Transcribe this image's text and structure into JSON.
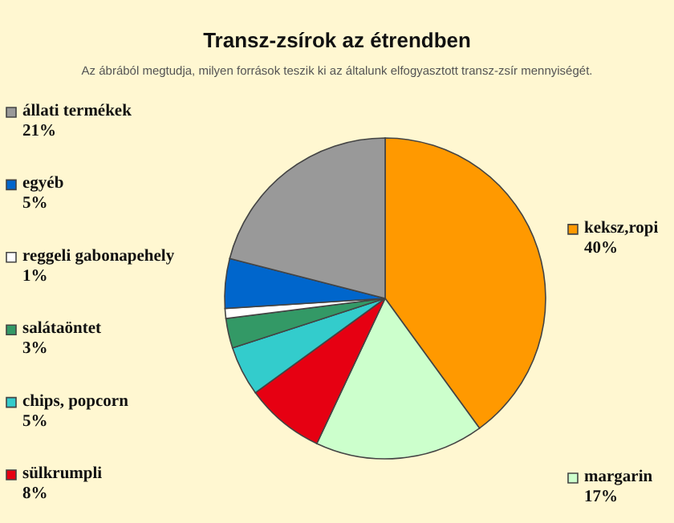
{
  "chart_data": {
    "type": "pie",
    "title": "Transz-zsírok az étrendben",
    "subtitle": "Az ábrából megtudja, milyen források teszik ki az általunk elfogyasztott transz-zsír mennyiségét.",
    "categories": [
      "keksz,ropi",
      "margarin",
      "sülkrumpli",
      "chips, popcorn",
      "salátaöntet",
      "reggeli gabonapehely",
      "egyéb",
      "állati termékek"
    ],
    "values": [
      40,
      17,
      8,
      5,
      3,
      1,
      5,
      21
    ],
    "legend": "left",
    "value_labels": [
      "40%",
      "17%",
      "8%",
      "5%",
      "3%",
      "1%",
      "5%",
      "21%"
    ],
    "colors": [
      "#ff9900",
      "#ccffcc",
      "#e60012",
      "#33cccc",
      "#339966",
      "#ffffff",
      "#0066cc",
      "#999999"
    ]
  }
}
